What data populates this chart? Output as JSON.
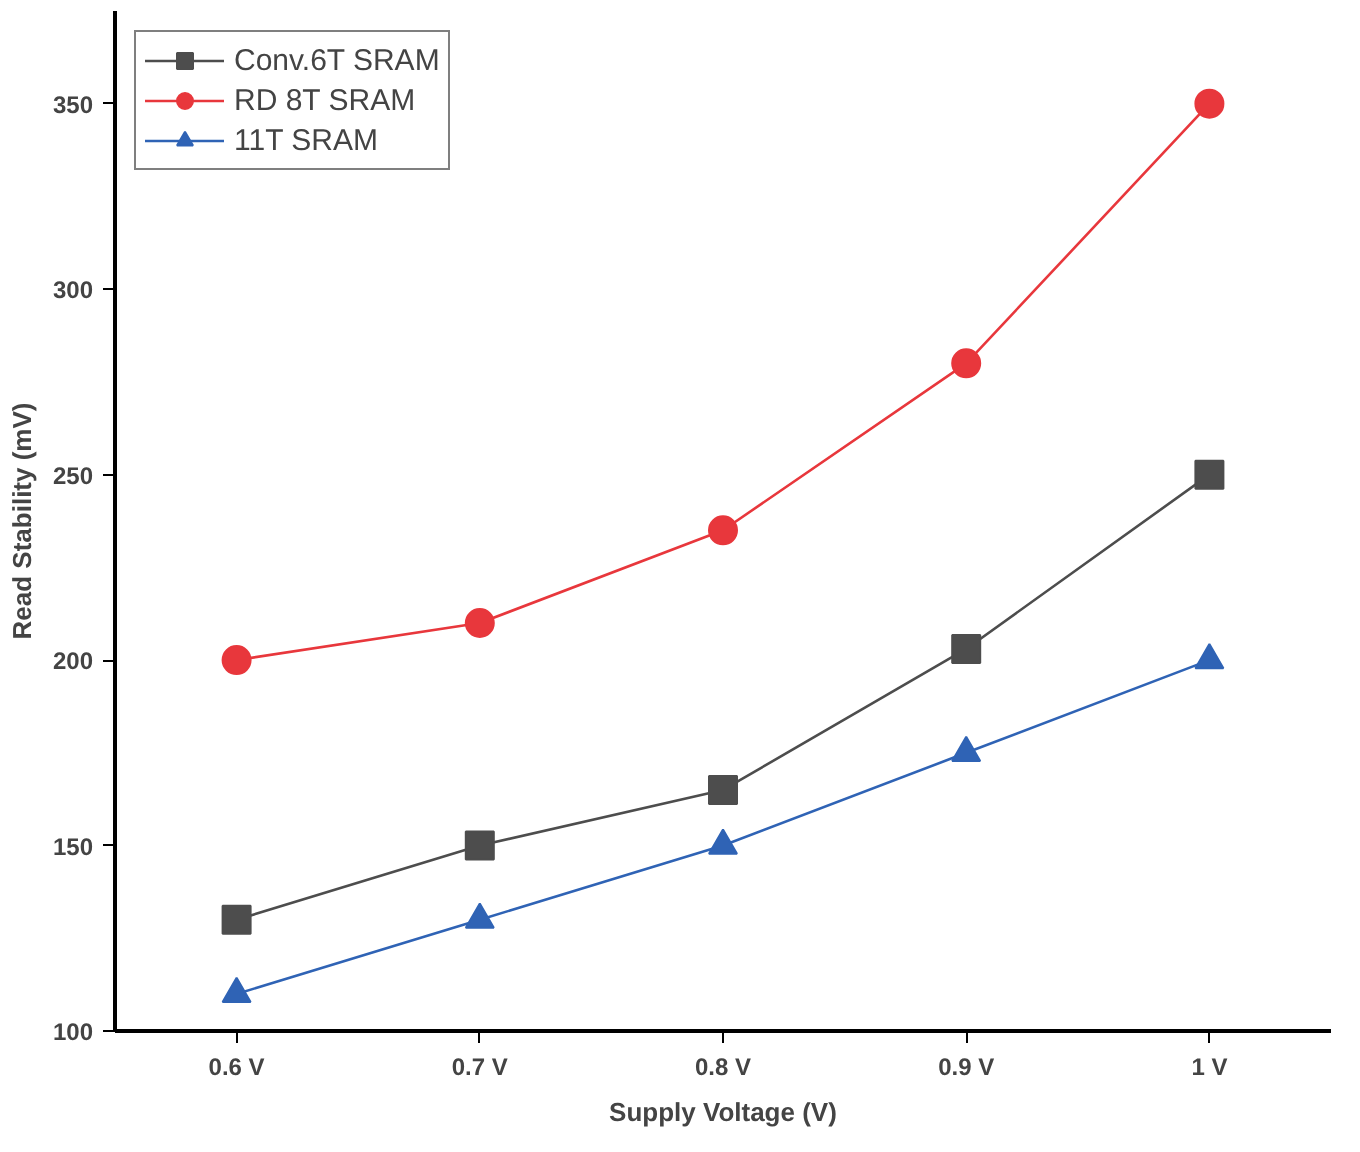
{
  "chart_data": {
    "type": "line",
    "xlabel": "Supply Voltage (V)",
    "ylabel": "Read Stability (mV)",
    "categories": [
      "0.6 V",
      "0.7 V",
      "0.8 V",
      "0.9 V",
      "1 V"
    ],
    "ylim": [
      100,
      375
    ],
    "yticks": [
      100,
      150,
      200,
      250,
      300,
      350
    ],
    "grid": false,
    "legend": "top left",
    "series": [
      {
        "name": "Conv.6T SRAM",
        "color": "#4d4d4d",
        "marker": "square",
        "values": [
          130,
          150,
          165,
          203,
          250
        ]
      },
      {
        "name": "RD 8T SRAM",
        "color": "#e8373c",
        "marker": "circle",
        "values": [
          200,
          210,
          235,
          280,
          350
        ]
      },
      {
        "name": "11T SRAM",
        "color": "#2f63b5",
        "marker": "triangle",
        "values": [
          110,
          130,
          150,
          175,
          200
        ]
      }
    ]
  }
}
